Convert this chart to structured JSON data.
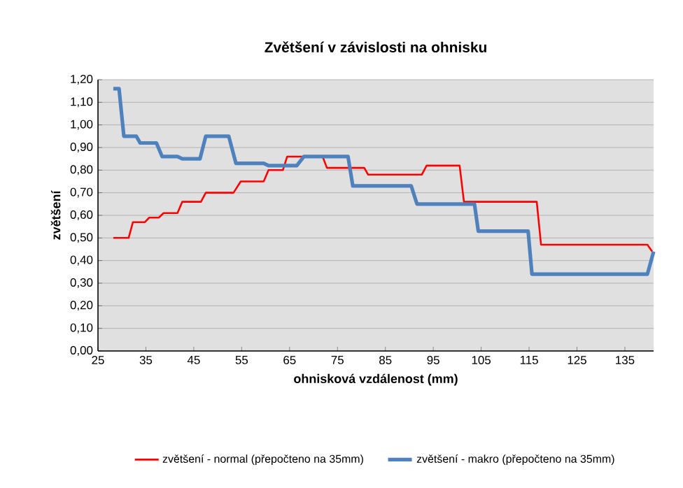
{
  "chart_data": {
    "type": "line",
    "title": "Zvětšení v závislosti na ohnisku",
    "xlabel": "ohnisková vzdálenost (mm)",
    "ylabel": "zvětšení",
    "xlim": [
      25,
      141
    ],
    "xticks": [
      25,
      35,
      45,
      55,
      65,
      75,
      85,
      95,
      105,
      115,
      125,
      135
    ],
    "ylim": [
      0,
      1.2
    ],
    "yticks": [
      {
        "value": 0,
        "label": "0,00"
      },
      {
        "value": 0.1,
        "label": "0,10"
      },
      {
        "value": 0.2,
        "label": "0,20"
      },
      {
        "value": 0.3,
        "label": "0,30"
      },
      {
        "value": 0.4,
        "label": "0,40"
      },
      {
        "value": 0.5,
        "label": "0,50"
      },
      {
        "value": 0.6,
        "label": "0,60"
      },
      {
        "value": 0.7,
        "label": "0,70"
      },
      {
        "value": 0.8,
        "label": "0,80"
      },
      {
        "value": 0.9,
        "label": "0,90"
      },
      {
        "value": 1.0,
        "label": "1,00"
      },
      {
        "value": 1.1,
        "label": "1,10"
      },
      {
        "value": 1.2,
        "label": "1,20"
      }
    ],
    "grid": "y",
    "legend": "bottom",
    "marker": "none",
    "line_style": "solid",
    "series": [
      {
        "name": "zvětšení - normal (přepočteno na 35mm)",
        "color": "#ff0000",
        "x": [
          28.2,
          31.4,
          32.3,
          34.8,
          35.7,
          37.7,
          38.7,
          41.6,
          42.6,
          46.5,
          47.5,
          53.3,
          54.8,
          59.6,
          60.6,
          63.6,
          64.5,
          71.9,
          72.8,
          80.6,
          81.4,
          92.6,
          93.6,
          100.5,
          101.4,
          116.6,
          117.5,
          139.7,
          140.7
        ],
        "values": [
          0.5,
          0.5,
          0.57,
          0.57,
          0.59,
          0.59,
          0.61,
          0.61,
          0.66,
          0.66,
          0.7,
          0.7,
          0.75,
          0.75,
          0.8,
          0.8,
          0.86,
          0.86,
          0.81,
          0.81,
          0.78,
          0.78,
          0.82,
          0.82,
          0.66,
          0.66,
          0.47,
          0.47,
          0.44
        ]
      },
      {
        "name": "zvětšení - makro (přepočteno na 35mm)",
        "color": "#4f81bd",
        "x": [
          28.2,
          29.4,
          30.4,
          33.0,
          33.8,
          37.2,
          38.4,
          41.6,
          42.6,
          46.3,
          47.5,
          52.3,
          53.8,
          59.6,
          60.6,
          66.5,
          68.0,
          77.2,
          78.2,
          90.4,
          91.6,
          103.6,
          104.4,
          114.8,
          115.6,
          139.7,
          141
        ],
        "values": [
          1.16,
          1.16,
          0.95,
          0.95,
          0.92,
          0.92,
          0.86,
          0.86,
          0.85,
          0.85,
          0.95,
          0.95,
          0.83,
          0.83,
          0.82,
          0.82,
          0.86,
          0.86,
          0.73,
          0.73,
          0.65,
          0.65,
          0.53,
          0.53,
          0.34,
          0.34,
          0.44
        ]
      }
    ]
  }
}
